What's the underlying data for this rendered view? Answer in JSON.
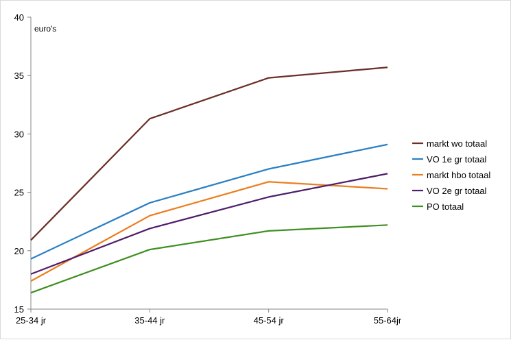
{
  "chart_data": {
    "type": "line",
    "ylabel": "euro's",
    "categories": [
      "25-34 jr",
      "35-44 jr",
      "45-54 jr",
      "55-64jr"
    ],
    "ylim": [
      15,
      40
    ],
    "yticks": [
      15,
      20,
      25,
      30,
      35,
      40
    ],
    "grid": false,
    "legend_position": "right",
    "series": [
      {
        "name": "markt wo totaal",
        "color": "#6b2f26",
        "values": [
          20.9,
          31.3,
          34.8,
          35.7
        ]
      },
      {
        "name": "VO 1e gr totaal",
        "color": "#2a7fc4",
        "values": [
          19.3,
          24.1,
          27.0,
          29.1
        ]
      },
      {
        "name": "markt hbo totaal",
        "color": "#ed7d1f",
        "values": [
          17.4,
          23.0,
          25.9,
          25.3
        ]
      },
      {
        "name": "VO 2e gr totaal",
        "color": "#4e1e6b",
        "values": [
          18.0,
          21.9,
          24.6,
          26.6
        ]
      },
      {
        "name": "PO totaal",
        "color": "#3f8f22",
        "values": [
          16.4,
          20.1,
          21.7,
          22.2
        ]
      }
    ]
  }
}
